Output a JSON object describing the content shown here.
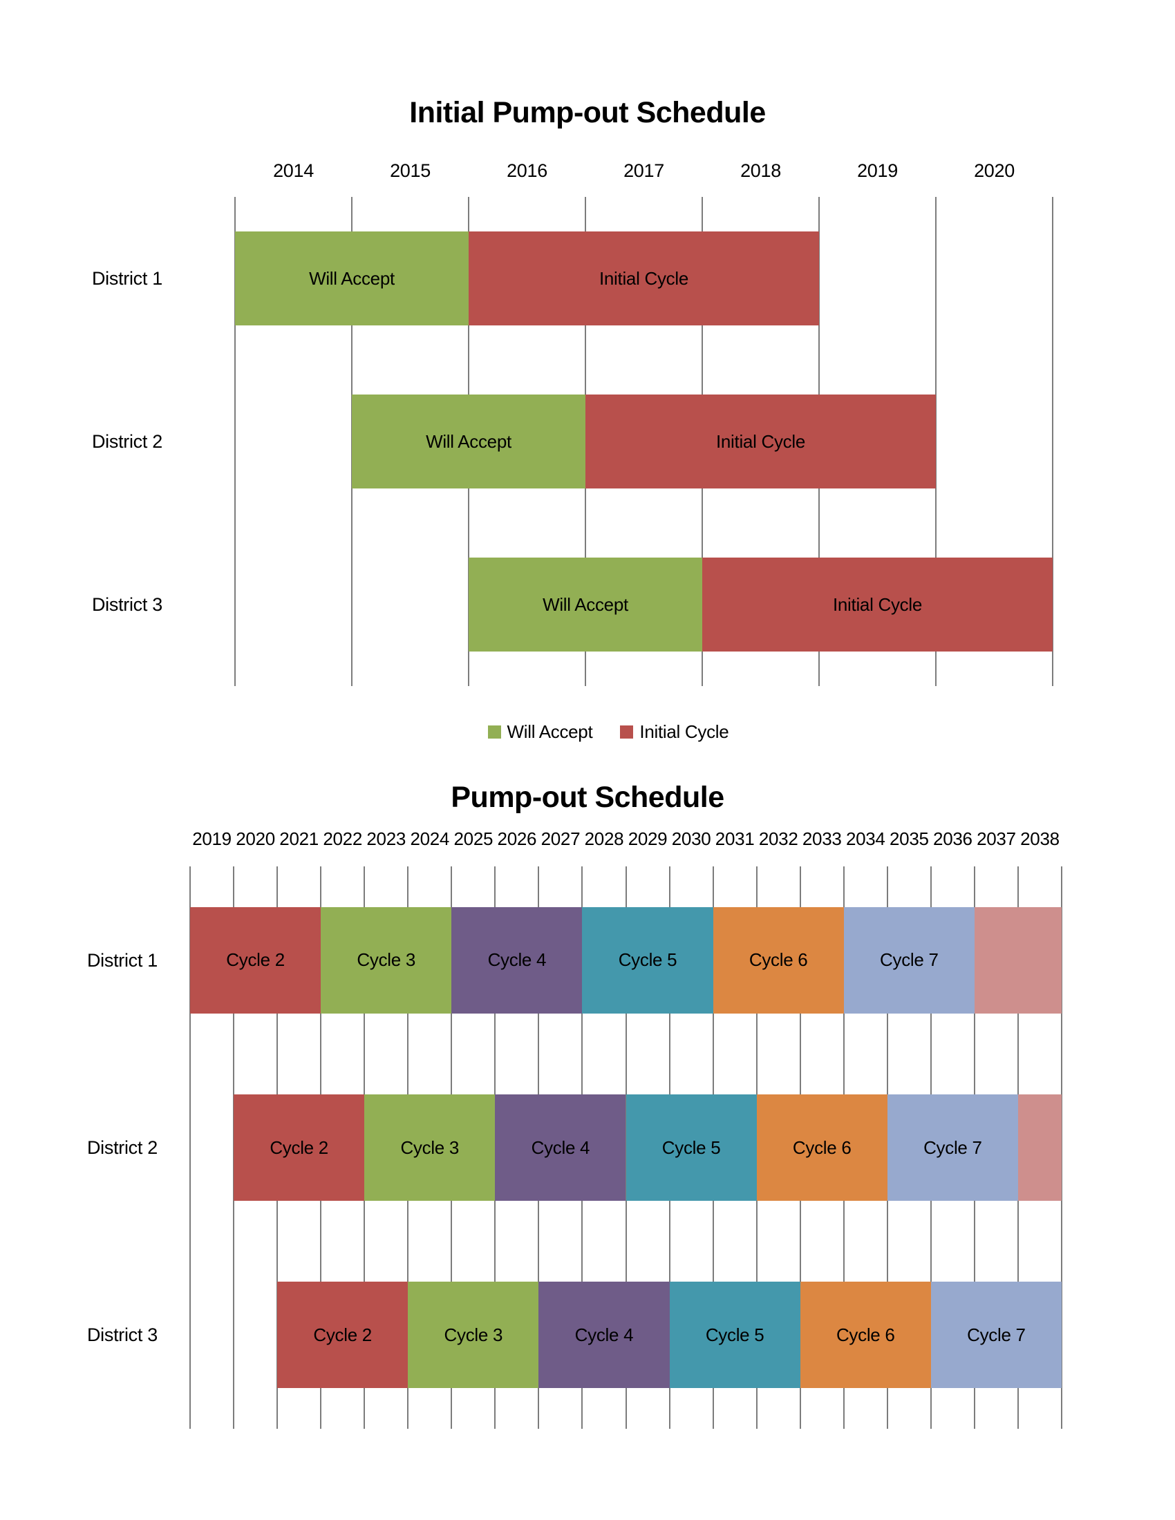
{
  "colors": {
    "red": "#B8504C",
    "green": "#92AF54",
    "purple": "#6F5C88",
    "teal": "#4498AC",
    "orange": "#DC8742",
    "lightblue": "#97A9CE",
    "pink": "#CE8F8D",
    "gridline": "#7C7C7C",
    "text": "#000000"
  },
  "chart_data": [
    {
      "type": "gantt",
      "title": "Initial Pump-out Schedule",
      "x_axis": {
        "start": 2014,
        "end": 2021,
        "tick_years": [
          2014,
          2015,
          2016,
          2017,
          2018,
          2019,
          2020
        ],
        "gridlines": true
      },
      "rows": [
        {
          "label": "District 1",
          "bars": [
            {
              "label": "Will Accept",
              "start": 2014,
              "end": 2016,
              "color": "green"
            },
            {
              "label": "Initial Cycle",
              "start": 2016,
              "end": 2019,
              "color": "red"
            }
          ]
        },
        {
          "label": "District 2",
          "bars": [
            {
              "label": "Will Accept",
              "start": 2015,
              "end": 2017,
              "color": "green"
            },
            {
              "label": "Initial Cycle",
              "start": 2017,
              "end": 2020,
              "color": "red"
            }
          ]
        },
        {
          "label": "District 3",
          "bars": [
            {
              "label": "Will Accept",
              "start": 2016,
              "end": 2018,
              "color": "green"
            },
            {
              "label": "Initial Cycle",
              "start": 2018,
              "end": 2021,
              "color": "red"
            }
          ]
        }
      ],
      "legend": {
        "position": "bottom-center",
        "items": [
          {
            "label": "Will Accept",
            "color": "green"
          },
          {
            "label": "Initial Cycle",
            "color": "red"
          }
        ]
      }
    },
    {
      "type": "gantt",
      "title": "Pump-out Schedule",
      "x_axis": {
        "start": 2019,
        "end": 2039,
        "tick_years": [
          2019,
          2020,
          2021,
          2022,
          2023,
          2024,
          2025,
          2026,
          2027,
          2028,
          2029,
          2030,
          2031,
          2032,
          2033,
          2034,
          2035,
          2036,
          2037,
          2038
        ],
        "gridlines": true
      },
      "rows": [
        {
          "label": "District 1",
          "bars": [
            {
              "label": "Cycle 2",
              "start": 2019,
              "end": 2022,
              "color": "red"
            },
            {
              "label": "Cycle 3",
              "start": 2022,
              "end": 2025,
              "color": "green"
            },
            {
              "label": "Cycle 4",
              "start": 2025,
              "end": 2028,
              "color": "purple"
            },
            {
              "label": "Cycle 5",
              "start": 2028,
              "end": 2031,
              "color": "teal"
            },
            {
              "label": "Cycle 6",
              "start": 2031,
              "end": 2034,
              "color": "orange"
            },
            {
              "label": "Cycle 7",
              "start": 2034,
              "end": 2037,
              "color": "lightblue"
            },
            {
              "label": "",
              "start": 2037,
              "end": 2039,
              "color": "pink"
            }
          ]
        },
        {
          "label": "District 2",
          "bars": [
            {
              "label": "Cycle 2",
              "start": 2020,
              "end": 2023,
              "color": "red"
            },
            {
              "label": "Cycle 3",
              "start": 2023,
              "end": 2026,
              "color": "green"
            },
            {
              "label": "Cycle 4",
              "start": 2026,
              "end": 2029,
              "color": "purple"
            },
            {
              "label": "Cycle 5",
              "start": 2029,
              "end": 2032,
              "color": "teal"
            },
            {
              "label": "Cycle 6",
              "start": 2032,
              "end": 2035,
              "color": "orange"
            },
            {
              "label": "Cycle 7",
              "start": 2035,
              "end": 2038,
              "color": "lightblue"
            },
            {
              "label": "",
              "start": 2038,
              "end": 2039,
              "color": "pink"
            }
          ]
        },
        {
          "label": "District 3",
          "bars": [
            {
              "label": "Cycle 2",
              "start": 2021,
              "end": 2024,
              "color": "red"
            },
            {
              "label": "Cycle 3",
              "start": 2024,
              "end": 2027,
              "color": "green"
            },
            {
              "label": "Cycle 4",
              "start": 2027,
              "end": 2030,
              "color": "purple"
            },
            {
              "label": "Cycle 5",
              "start": 2030,
              "end": 2033,
              "color": "teal"
            },
            {
              "label": "Cycle 6",
              "start": 2033,
              "end": 2036,
              "color": "orange"
            },
            {
              "label": "Cycle 7",
              "start": 2036,
              "end": 2039,
              "color": "lightblue"
            }
          ]
        }
      ]
    }
  ]
}
